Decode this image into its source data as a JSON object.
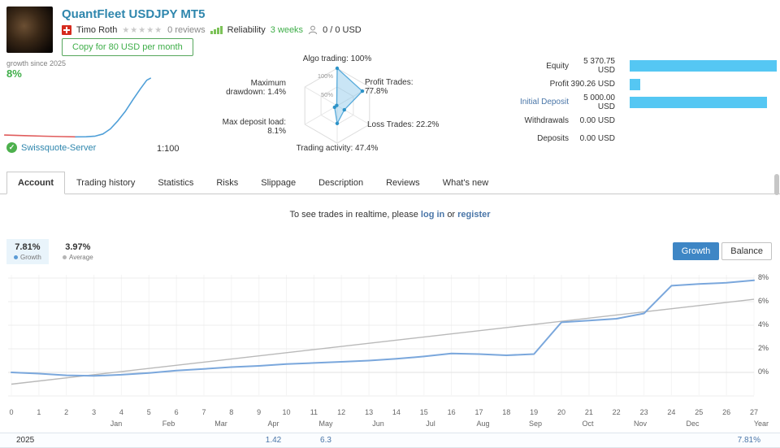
{
  "colors": {
    "accent": "#2e86ad",
    "link": "#4a76a8",
    "green": "#3fae49",
    "bar_cyan": "#55c7f3",
    "chart_line": "#7aa7dc",
    "chart_average": "#b9b9b9"
  },
  "header": {
    "title": "QuantFleet USDJPY MT5",
    "author": "Timo Roth",
    "stars": "★★★★★",
    "reviews": "0 reviews",
    "reliability": "Reliability",
    "age": "3 weeks",
    "subscribers": "0 / 0 USD",
    "copy_button": "Copy for 80 USD per month"
  },
  "growth_box": {
    "caption": "growth since 2025",
    "value": "8%"
  },
  "server": {
    "name": "Swissquote-Server",
    "leverage": "1:100"
  },
  "radar": {
    "rings": [
      "100%",
      "50%"
    ],
    "axes": [
      {
        "label": "Algo trading: 100%",
        "value": 100
      },
      {
        "label": "Profit Trades:\n77.8%",
        "value": 77.8
      },
      {
        "label": "Loss Trades: 22.2%",
        "value": 22.2
      },
      {
        "label": "Trading activity: 47.4%",
        "value": 47.4
      },
      {
        "label": "Max deposit load:\n8.1%",
        "value": 8.1
      },
      {
        "label": "Maximum\ndrawdown: 1.4%",
        "value": 1.4
      }
    ]
  },
  "account_stats": [
    {
      "label": "Equity",
      "value": "5 370.75 USD",
      "bar_pct": 100,
      "is_link": false
    },
    {
      "label": "Profit",
      "value": "390.26 USD",
      "bar_pct": 7.3,
      "is_link": false
    },
    {
      "label": "Initial Deposit",
      "value": "5 000.00 USD",
      "bar_pct": 93.1,
      "is_link": true
    },
    {
      "label": "Withdrawals",
      "value": "0.00 USD",
      "bar_pct": 0,
      "is_link": false
    },
    {
      "label": "Deposits",
      "value": "0.00 USD",
      "bar_pct": 0,
      "is_link": false
    }
  ],
  "tabs": {
    "items": [
      "Account",
      "Trading history",
      "Statistics",
      "Risks",
      "Slippage",
      "Description",
      "Reviews",
      "What's new"
    ],
    "active": 0
  },
  "notice": {
    "text": "To see trades in realtime, please",
    "login": "log in",
    "or": "or",
    "register": "register"
  },
  "summary": {
    "growth": {
      "value": "7.81%",
      "label": "Growth"
    },
    "average": {
      "value": "3.97%",
      "label": "Average"
    },
    "view_buttons": [
      "Growth",
      "Balance"
    ]
  },
  "chart_data": {
    "type": "line",
    "title": "Account growth by week",
    "x_ticks": [
      0,
      1,
      2,
      3,
      4,
      5,
      6,
      7,
      8,
      9,
      10,
      11,
      12,
      13,
      14,
      15,
      16,
      17,
      18,
      19,
      20,
      21,
      22,
      23,
      24,
      25,
      26,
      27
    ],
    "yticks": [
      {
        "label": "8%",
        "value": 8
      },
      {
        "label": "6%",
        "value": 6
      },
      {
        "label": "4%",
        "value": 4
      },
      {
        "label": "2%",
        "value": 2
      },
      {
        "label": "0%",
        "value": 0
      }
    ],
    "ylim": [
      -2.9,
      8.6
    ],
    "series": [
      {
        "name": "Growth",
        "color": "#7aa7dc",
        "values": [
          0,
          -0.1,
          -0.25,
          -0.3,
          -0.2,
          -0.05,
          0.15,
          0.3,
          0.45,
          0.55,
          0.7,
          0.8,
          0.9,
          1.0,
          1.15,
          1.35,
          1.6,
          1.55,
          1.45,
          1.55,
          4.25,
          4.4,
          4.55,
          5.0,
          7.35,
          7.5,
          7.6,
          7.81
        ]
      },
      {
        "name": "Average",
        "color": "#b9b9b9",
        "endpoints": [
          -1.0,
          6.2
        ]
      }
    ],
    "months": [
      "Jan",
      "Feb",
      "Mar",
      "Apr",
      "May",
      "Jun",
      "Jul",
      "Aug",
      "Sep",
      "Oct",
      "Nov",
      "Dec"
    ],
    "year_label": "Year",
    "footer": {
      "year": "2025",
      "monthly_values": [
        "",
        "",
        "",
        "1.42",
        "6.3",
        "",
        "",
        "",
        "",
        "",
        "",
        ""
      ],
      "total": "7.81%"
    }
  },
  "sparkline": {
    "ymin": -1,
    "ymax": 8.5,
    "series": [
      {
        "name": "loss",
        "color": "#e05c5c",
        "points": [
          [
            0.02,
            -0.3
          ],
          [
            0.15,
            -0.38
          ],
          [
            0.28,
            -0.46
          ],
          [
            0.4,
            -0.52
          ],
          [
            0.49,
            -0.56
          ]
        ]
      },
      {
        "name": "gain",
        "color": "#4f9fd8",
        "points": [
          [
            0.49,
            -0.56
          ],
          [
            0.56,
            -0.55
          ],
          [
            0.62,
            -0.45
          ],
          [
            0.67,
            -0.15
          ],
          [
            0.72,
            0.6
          ],
          [
            0.77,
            1.8
          ],
          [
            0.82,
            3.2
          ],
          [
            0.87,
            4.9
          ],
          [
            0.92,
            6.5
          ],
          [
            0.96,
            7.7
          ],
          [
            0.985,
            8.0
          ]
        ]
      }
    ]
  }
}
